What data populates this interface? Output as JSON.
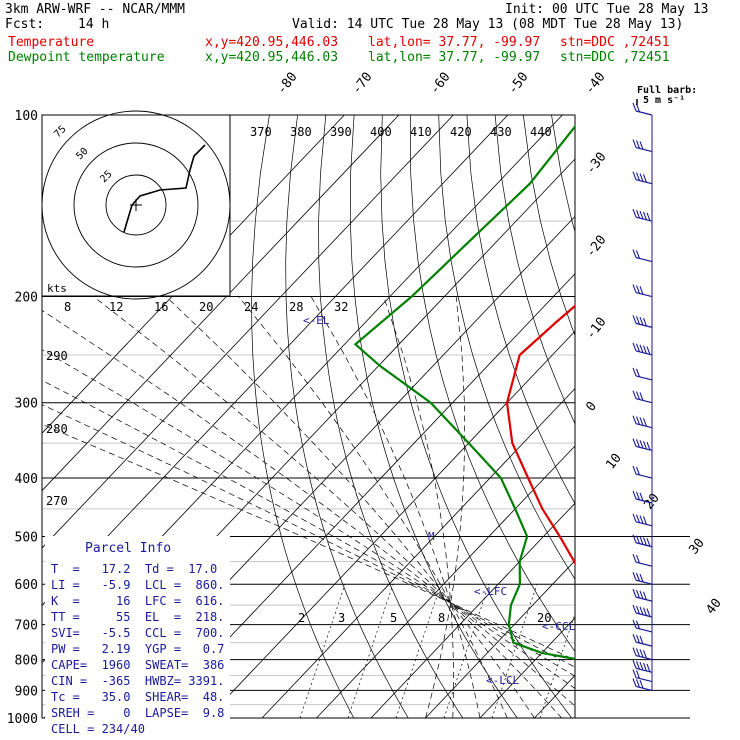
{
  "header": {
    "model": "3km ARW-WRF -- NCAR/MMM",
    "init": "Init: 00 UTC Tue 28 May 13",
    "fcst_label": "Fcst:",
    "fcst_value": "14 h",
    "valid": "Valid: 14 UTC Tue 28 May 13 (08 MDT Tue 28 May 13)",
    "line_temp": {
      "label": "Temperature",
      "xy": "x,y=420.95,446.03",
      "latlon": "lat,lon= 37.77, -99.97",
      "stn": "stn=DDC ,72451"
    },
    "line_dew": {
      "label": "Dewpoint temperature",
      "xy": "x,y=420.95,446.03",
      "latlon": "lat,lon= 37.77, -99.97",
      "stn": "stn=DDC ,72451"
    }
  },
  "barb_legend": {
    "title": "Full barb:",
    "unit": "5 m s⁻¹"
  },
  "hodograph": {
    "units": "kts",
    "ring_labels": [
      "75",
      "50",
      "25"
    ]
  },
  "parcel_info": {
    "title": "Parcel Info",
    "rows": [
      "T  =   17.2  Td =  17.0",
      "LI =   -5.9  LCL =  860.",
      "K  =     16  LFC =  616.",
      "TT =     55  EL  =  218.",
      "SVI=   -5.5  CCL =  700.",
      "PW =   2.19  YGP =   0.7",
      "CAPE=  1960  SWEAT=  386",
      "CIN =  -365  HWBZ= 3391.",
      "Tc =   35.0  SHEAR=  48.",
      "SREH =    0  LAPSE=  9.8",
      "CELL = 234/40"
    ]
  },
  "chart_data": {
    "type": "line",
    "title": "",
    "xlabel": "",
    "ylabel": "",
    "chart_kind": "skew-T log-p diagram",
    "y_scale": "log pressure (hPa)",
    "pressure_ticks": [
      100,
      200,
      300,
      400,
      500,
      600,
      700,
      800,
      900,
      1000
    ],
    "ylim": [
      1000,
      100
    ],
    "isotherm_labels": [
      -80,
      -70,
      -60,
      -50,
      -40,
      -30,
      -20,
      -10,
      0,
      10,
      20,
      30,
      40
    ],
    "theta_labels": [
      370,
      380,
      390,
      400,
      410,
      420,
      430,
      440
    ],
    "theta_low_labels": [
      290,
      280,
      270
    ],
    "mixing_ratio_labels": [
      2,
      3,
      5,
      8,
      20
    ],
    "theta_e_labels": [
      8,
      12,
      16,
      20,
      24,
      28,
      32
    ],
    "level_markers": [
      "EL",
      "LFC",
      "CCL",
      "LCL",
      "M"
    ],
    "series": [
      {
        "name": "Temperature",
        "color": "#e00000",
        "points": [
          [
            100,
            -71
          ],
          [
            120,
            -63
          ],
          [
            150,
            -56
          ],
          [
            180,
            -55
          ],
          [
            200,
            -54
          ],
          [
            220,
            -55
          ],
          [
            250,
            -56
          ],
          [
            300,
            -50
          ],
          [
            350,
            -42
          ],
          [
            400,
            -33
          ],
          [
            450,
            -25
          ],
          [
            500,
            -17
          ],
          [
            550,
            -10
          ],
          [
            600,
            -4
          ],
          [
            650,
            1
          ],
          [
            700,
            6
          ],
          [
            750,
            11
          ],
          [
            780,
            14
          ],
          [
            800,
            17
          ],
          [
            820,
            20
          ],
          [
            850,
            18
          ],
          [
            880,
            17
          ],
          [
            900,
            16
          ]
        ]
      },
      {
        "name": "Dewpoint temperature",
        "color": "#008000",
        "points": [
          [
            100,
            -86
          ],
          [
            130,
            -84
          ],
          [
            160,
            -85
          ],
          [
            200,
            -86
          ],
          [
            240,
            -88
          ],
          [
            260,
            -80
          ],
          [
            300,
            -64
          ],
          [
            350,
            -50
          ],
          [
            400,
            -38
          ],
          [
            450,
            -30
          ],
          [
            500,
            -23
          ],
          [
            550,
            -20
          ],
          [
            600,
            -16
          ],
          [
            650,
            -14
          ],
          [
            700,
            -11
          ],
          [
            750,
            -7
          ],
          [
            780,
            0
          ],
          [
            800,
            8
          ],
          [
            830,
            12
          ],
          [
            860,
            16
          ],
          [
            880,
            17
          ],
          [
            900,
            15
          ]
        ]
      }
    ],
    "wind_barbs_at": [
      100,
      115,
      130,
      150,
      175,
      200,
      225,
      250,
      275,
      300,
      330,
      360,
      400,
      440,
      480,
      520,
      560,
      600,
      640,
      680,
      720,
      760,
      800,
      840,
      870,
      900
    ]
  },
  "colors": {
    "temperature": "#e00000",
    "dewpoint": "#008000",
    "grid": "#000000",
    "barbs": "#1a1a9a"
  }
}
